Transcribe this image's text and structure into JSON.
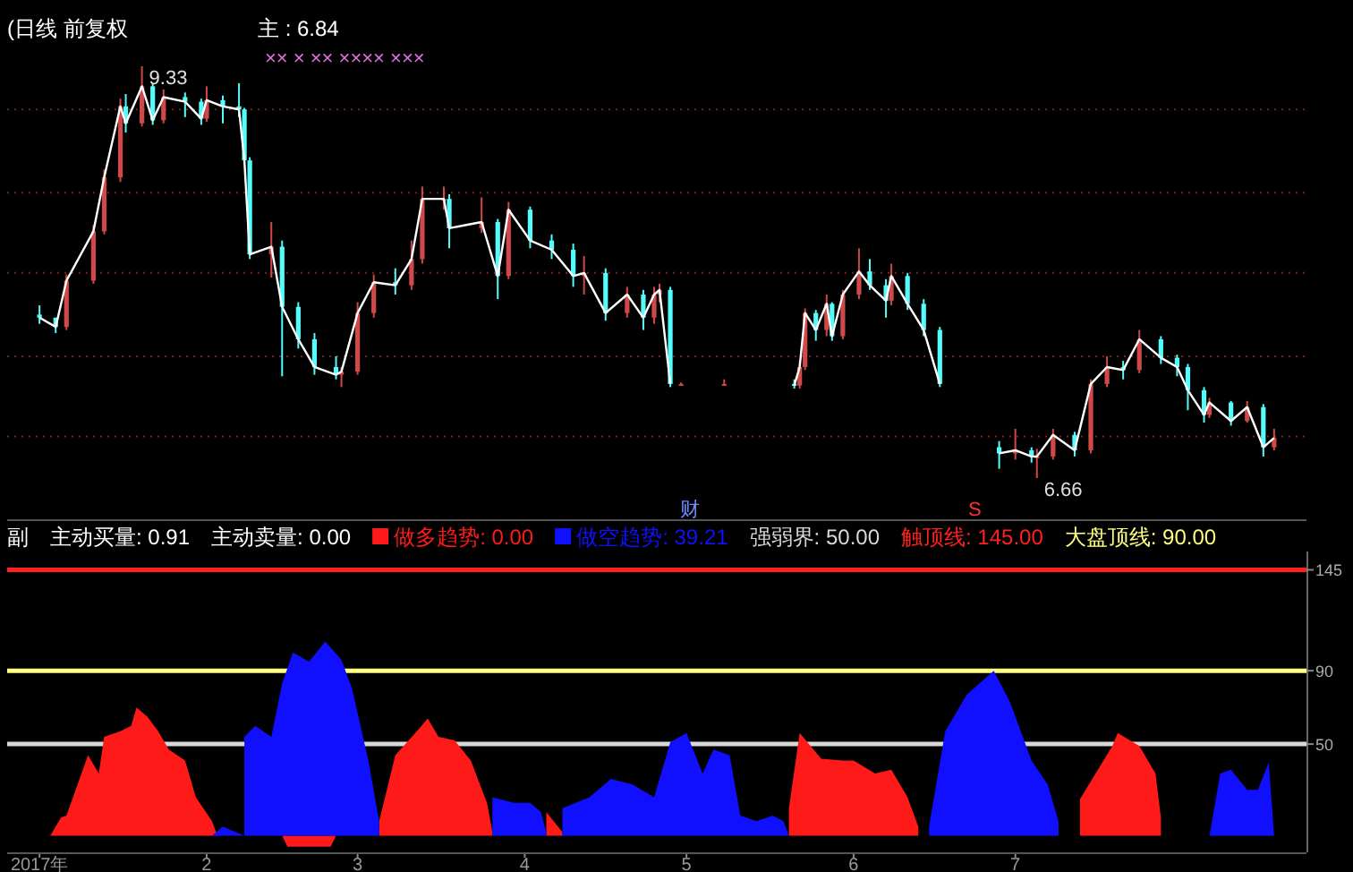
{
  "chart_data": [
    {
      "type": "candlestick",
      "title": "(日线 前复权",
      "x": [
        "2017-01-01",
        "2017-01-04",
        "2017-01-06",
        "2017-01-11",
        "2017-01-13",
        "2017-01-16",
        "2017-01-17",
        "2017-01-20",
        "2017-01-22",
        "2017-01-24",
        "2017-01-28",
        "2017-01-31",
        "2017-02-01",
        "2017-02-04",
        "2017-02-07",
        "2017-02-08",
        "2017-02-09",
        "2017-02-13",
        "2017-02-15",
        "2017-02-18",
        "2017-02-21",
        "2017-02-25",
        "2017-02-26",
        "2017-03-01",
        "2017-03-04",
        "2017-03-08",
        "2017-03-11",
        "2017-03-13",
        "2017-03-17",
        "2017-03-18",
        "2017-03-24",
        "2017-03-27",
        "2017-03-29",
        "2017-04-02",
        "2017-04-06",
        "2017-04-10",
        "2017-04-12",
        "2017-04-16",
        "2017-04-20",
        "2017-04-23",
        "2017-04-25",
        "2017-04-26",
        "2017-04-28",
        "2017-04-30",
        "2017-05-08",
        "2017-05-21",
        "2017-05-22",
        "2017-05-23",
        "2017-05-25",
        "2017-05-27",
        "2017-05-28",
        "2017-05-30",
        "2017-06-02",
        "2017-06-04",
        "2017-06-07",
        "2017-06-08",
        "2017-06-11",
        "2017-06-14",
        "2017-06-17",
        "2017-06-28",
        "2017-07-01",
        "2017-07-04",
        "2017-07-05",
        "2017-07-08",
        "2017-07-12",
        "2017-07-15",
        "2017-07-18",
        "2017-07-21",
        "2017-07-24",
        "2017-07-28",
        "2017-07-31",
        "2017-08-02",
        "2017-08-05",
        "2017-08-06",
        "2017-08-10",
        "2017-08-13",
        "2017-08-16",
        "2017-08-18"
      ],
      "ohlc": [
        [
          7.72,
          7.78,
          7.66,
          7.7
        ],
        [
          7.7,
          7.7,
          7.6,
          7.64
        ],
        [
          7.64,
          7.98,
          7.62,
          7.94
        ],
        [
          7.94,
          8.3,
          7.92,
          8.26
        ],
        [
          8.26,
          8.66,
          8.24,
          8.61
        ],
        [
          8.61,
          9.12,
          8.58,
          9.07
        ],
        [
          9.07,
          9.15,
          8.9,
          8.96
        ],
        [
          8.96,
          9.33,
          8.94,
          9.2
        ],
        [
          9.2,
          9.22,
          8.95,
          8.98
        ],
        [
          8.98,
          9.18,
          8.96,
          9.13
        ],
        [
          9.13,
          9.16,
          9.0,
          9.1
        ],
        [
          9.1,
          9.12,
          8.95,
          8.99
        ],
        [
          8.99,
          9.2,
          8.97,
          9.11
        ],
        [
          9.11,
          9.14,
          8.96,
          9.07
        ],
        [
          9.07,
          9.22,
          9.0,
          9.05
        ],
        [
          9.05,
          9.06,
          8.7,
          8.72
        ],
        [
          8.72,
          8.74,
          8.08,
          8.11
        ],
        [
          8.11,
          8.32,
          7.96,
          8.16
        ],
        [
          8.16,
          8.2,
          7.32,
          7.77
        ],
        [
          7.77,
          7.8,
          7.5,
          7.56
        ],
        [
          7.56,
          7.6,
          7.33,
          7.38
        ],
        [
          7.38,
          7.45,
          7.3,
          7.33
        ],
        [
          7.33,
          7.38,
          7.25,
          7.35
        ],
        [
          7.35,
          7.8,
          7.33,
          7.73
        ],
        [
          7.73,
          7.98,
          7.7,
          7.93
        ],
        [
          7.93,
          8.02,
          7.85,
          7.91
        ],
        [
          7.91,
          8.2,
          7.88,
          8.08
        ],
        [
          8.08,
          8.55,
          8.05,
          8.47
        ],
        [
          8.47,
          8.55,
          8.4,
          8.47
        ],
        [
          8.47,
          8.5,
          8.15,
          8.28
        ],
        [
          8.28,
          8.48,
          8.25,
          8.32
        ],
        [
          8.32,
          8.34,
          7.82,
          7.97
        ],
        [
          7.97,
          8.45,
          7.95,
          8.4
        ],
        [
          8.4,
          8.42,
          8.15,
          8.2
        ],
        [
          8.2,
          8.24,
          8.08,
          8.14
        ],
        [
          8.14,
          8.18,
          7.9,
          7.97
        ],
        [
          7.97,
          8.1,
          7.85,
          7.99
        ],
        [
          7.99,
          8.02,
          7.68,
          7.73
        ],
        [
          7.73,
          7.9,
          7.7,
          7.85
        ],
        [
          7.85,
          7.88,
          7.62,
          7.7
        ],
        [
          7.7,
          7.9,
          7.66,
          7.85
        ],
        [
          7.85,
          7.92,
          7.8,
          7.88
        ],
        [
          7.88,
          7.9,
          7.25,
          7.27
        ],
        [
          7.27,
          7.28,
          7.26,
          7.27
        ],
        [
          7.27,
          7.3,
          7.26,
          7.27
        ],
        [
          7.27,
          7.3,
          7.24,
          7.26
        ],
        [
          7.26,
          7.42,
          7.24,
          7.38
        ],
        [
          7.38,
          7.76,
          7.36,
          7.73
        ],
        [
          7.73,
          7.75,
          7.55,
          7.62
        ],
        [
          7.62,
          7.85,
          7.58,
          7.79
        ],
        [
          7.79,
          7.8,
          7.55,
          7.58
        ],
        [
          7.58,
          7.88,
          7.56,
          7.85
        ],
        [
          7.85,
          8.15,
          7.82,
          8.0
        ],
        [
          8.0,
          8.08,
          7.88,
          7.91
        ],
        [
          7.91,
          7.95,
          7.7,
          7.81
        ],
        [
          7.81,
          8.05,
          7.78,
          7.97
        ],
        [
          7.97,
          7.99,
          7.75,
          7.79
        ],
        [
          7.79,
          7.82,
          7.58,
          7.62
        ],
        [
          7.62,
          7.64,
          7.25,
          7.27
        ],
        [
          6.86,
          6.9,
          6.72,
          6.82
        ],
        [
          6.82,
          6.98,
          6.78,
          6.84
        ],
        [
          6.84,
          6.86,
          6.76,
          6.8
        ],
        [
          6.8,
          6.85,
          6.66,
          6.8
        ],
        [
          6.8,
          6.98,
          6.78,
          6.94
        ],
        [
          6.94,
          6.96,
          6.8,
          6.84
        ],
        [
          6.84,
          7.3,
          6.82,
          7.27
        ],
        [
          7.27,
          7.45,
          7.25,
          7.38
        ],
        [
          7.38,
          7.42,
          7.3,
          7.36
        ],
        [
          7.36,
          7.62,
          7.34,
          7.56
        ],
        [
          7.56,
          7.58,
          7.4,
          7.44
        ],
        [
          7.44,
          7.46,
          7.32,
          7.38
        ],
        [
          7.38,
          7.4,
          7.1,
          7.23
        ],
        [
          7.23,
          7.25,
          7.02,
          7.07
        ],
        [
          7.07,
          7.18,
          7.05,
          7.15
        ],
        [
          7.15,
          7.16,
          7.0,
          7.03
        ],
        [
          7.03,
          7.16,
          7.02,
          7.12
        ],
        [
          7.12,
          7.14,
          6.8,
          6.86
        ],
        [
          6.86,
          6.98,
          6.84,
          6.92
        ]
      ],
      "colors": [
        "#54fcfc",
        "#54fcfc",
        "#d04848",
        "#d04848",
        "#d04848",
        "#d04848",
        "#54fcfc",
        "#d04848",
        "#54fcfc",
        "#d04848",
        "#54fcfc",
        "#54fcfc",
        "#d04848",
        "#54fcfc",
        "#54fcfc",
        "#54fcfc",
        "#54fcfc",
        "#d04848",
        "#54fcfc",
        "#54fcfc",
        "#54fcfc",
        "#54fcfc",
        "#d04848",
        "#d04848",
        "#d04848",
        "#54fcfc",
        "#d04848",
        "#d04848",
        "#d04848",
        "#54fcfc",
        "#d04848",
        "#54fcfc",
        "#d04848",
        "#54fcfc",
        "#54fcfc",
        "#54fcfc",
        "#d04848",
        "#54fcfc",
        "#d04848",
        "#54fcfc",
        "#d04848",
        "#d04848",
        "#54fcfc",
        "#d04848",
        "#d04848",
        "#54fcfc",
        "#d04848",
        "#d04848",
        "#54fcfc",
        "#d04848",
        "#54fcfc",
        "#d04848",
        "#d04848",
        "#54fcfc",
        "#54fcfc",
        "#d04848",
        "#54fcfc",
        "#54fcfc",
        "#54fcfc",
        "#54fcfc",
        "#d04848",
        "#54fcfc",
        "#d04848",
        "#d04848",
        "#54fcfc",
        "#d04848",
        "#d04848",
        "#54fcfc",
        "#d04848",
        "#54fcfc",
        "#54fcfc",
        "#54fcfc",
        "#54fcfc",
        "#d04848",
        "#54fcfc",
        "#d04848",
        "#54fcfc",
        "#d04848"
      ],
      "series": [
        {
          "type": "line",
          "color": "#ffffff",
          "x": [
            "2017-01-01",
            "2017-01-04",
            "2017-01-06",
            "2017-01-11",
            "2017-01-13",
            "2017-01-16",
            "2017-01-17",
            "2017-01-20",
            "2017-01-22",
            "2017-01-24",
            "2017-01-28",
            "2017-01-31",
            "2017-02-01",
            "2017-02-04",
            "2017-02-07",
            "2017-02-08",
            "2017-02-09",
            "2017-02-13",
            "2017-02-15",
            "2017-02-18",
            "2017-02-21",
            "2017-02-25",
            "2017-02-26",
            "2017-03-01",
            "2017-03-04",
            "2017-03-08",
            "2017-03-11",
            "2017-03-13",
            "2017-03-17",
            "2017-03-18",
            "2017-03-24",
            "2017-03-27",
            "2017-03-29",
            "2017-04-02",
            "2017-04-06",
            "2017-04-10",
            "2017-04-12",
            "2017-04-16",
            "2017-04-20",
            "2017-04-23",
            "2017-04-25",
            "2017-04-26",
            "2017-04-28",
            "2017-04-30",
            "2017-05-08",
            "2017-05-21",
            "2017-05-22",
            "2017-05-23",
            "2017-05-25",
            "2017-05-27",
            "2017-05-28",
            "2017-05-30",
            "2017-06-02",
            "2017-06-04",
            "2017-06-07",
            "2017-06-08",
            "2017-06-11",
            "2017-06-14",
            "2017-06-17",
            "2017-06-22",
            "2017-06-28",
            "2017-07-01",
            "2017-07-04",
            "2017-07-05",
            "2017-07-08",
            "2017-07-12",
            "2017-07-15",
            "2017-07-18",
            "2017-07-21",
            "2017-07-24",
            "2017-07-28",
            "2017-07-31",
            "2017-08-02",
            "2017-08-05",
            "2017-08-06",
            "2017-08-10",
            "2017-08-13",
            "2017-08-16",
            "2017-08-18"
          ],
          "values": [
            7.7,
            7.64,
            7.94,
            8.26,
            8.61,
            9.07,
            8.96,
            9.2,
            8.98,
            9.13,
            9.1,
            8.99,
            9.11,
            9.07,
            9.05,
            8.72,
            8.11,
            8.16,
            7.77,
            7.56,
            7.38,
            7.33,
            7.35,
            7.73,
            7.93,
            7.91,
            8.08,
            8.47,
            8.47,
            8.28,
            8.32,
            7.97,
            8.4,
            8.2,
            8.14,
            7.97,
            7.99,
            7.73,
            7.85,
            7.7,
            7.85,
            7.88,
            7.27,
            null,
            null,
            7.26,
            7.38,
            7.73,
            7.62,
            7.79,
            7.58,
            7.85,
            8.0,
            7.91,
            7.81,
            7.97,
            7.79,
            7.62,
            7.27,
            null,
            6.82,
            6.84,
            6.8,
            6.8,
            6.94,
            6.84,
            7.27,
            7.38,
            7.36,
            7.56,
            7.44,
            7.38,
            7.23,
            7.07,
            7.15,
            7.03,
            7.12,
            6.86,
            6.92
          ]
        }
      ],
      "xlim": [
        "2016-12-26",
        "2017-08-24"
      ],
      "yticks": [
        {
          "value": 9.05,
          "label": null
        },
        {
          "value": 8.51,
          "label": null
        },
        {
          "value": 7.99,
          "label": null
        },
        {
          "value": 7.45,
          "label": null
        },
        {
          "value": 6.93,
          "label": null
        }
      ],
      "grid": "y",
      "annotations": [
        "主 : 6.84",
        "××   ×   ××   ×××× ×××",
        "财",
        "S",
        {
          "text": "9.33",
          "x": "2017-01-20",
          "y": 9.33
        },
        {
          "text": "6.66",
          "x": "2017-07-05",
          "y": 6.66
        }
      ]
    },
    {
      "type": "area",
      "xlim": [
        "2016-12-26",
        "2017-08-24"
      ],
      "ylim": [
        -9,
        155
      ],
      "xticks": [
        {
          "value": "2017-01-01",
          "label": "2017年"
        },
        {
          "value": "2017-02-01",
          "label": "2"
        },
        {
          "value": "2017-03-01",
          "label": "3"
        },
        {
          "value": "2017-04-01",
          "label": "4"
        },
        {
          "value": "2017-05-01",
          "label": "5"
        },
        {
          "value": "2017-06-01",
          "label": "6"
        },
        {
          "value": "2017-07-01",
          "label": "7"
        }
      ],
      "yticks": [
        50,
        90,
        145
      ],
      "legend": "top",
      "annotations": [
        "副",
        "主动买量: 0.91",
        "主动卖量: 0.00"
      ],
      "series": [
        {
          "name": "做多趋势: 0.00",
          "color": "#ff1a1a",
          "x": [
            "2017-01-03",
            "2017-01-05",
            "2017-01-06",
            "2017-01-10",
            "2017-01-12",
            "2017-01-13",
            "2017-01-16",
            "2017-01-18",
            "2017-01-19",
            "2017-01-21",
            "2017-01-23",
            "2017-01-25",
            "2017-01-28",
            "2017-01-30",
            "2017-02-02",
            "2017-02-03",
            "2017-02-15",
            "2017-02-16",
            "2017-02-24",
            "2017-02-25",
            "2017-03-05",
            "2017-03-05",
            "2017-03-08",
            "2017-03-12",
            "2017-03-14",
            "2017-03-16",
            "2017-03-19",
            "2017-03-22",
            "2017-03-25",
            "2017-03-26",
            "2017-03-26",
            "2017-04-05",
            "2017-04-05",
            "2017-04-08",
            "2017-04-08",
            "2017-05-20",
            "2017-05-20",
            "2017-05-22",
            "2017-05-26",
            "2017-05-30",
            "2017-06-01",
            "2017-06-05",
            "2017-06-08",
            "2017-06-11",
            "2017-06-13",
            "2017-06-13",
            "2017-07-13",
            "2017-07-13",
            "2017-07-19",
            "2017-07-20",
            "2017-07-24",
            "2017-07-27",
            "2017-07-28",
            "2017-07-28"
          ],
          "values": [
            0,
            10,
            11,
            44,
            34,
            54,
            57,
            60,
            70,
            65,
            57,
            47,
            41,
            21,
            8,
            0,
            0,
            -6,
            -6,
            0,
            0,
            8,
            44,
            57,
            64,
            54,
            52,
            41,
            18,
            2,
            0,
            0,
            13,
            2,
            0,
            0,
            15,
            56,
            42,
            41,
            41,
            34,
            36,
            21,
            5,
            0,
            0,
            20,
            49,
            56,
            49,
            34,
            10,
            0
          ]
        },
        {
          "name": "做空趋势: 39.21",
          "color": "#1010ff",
          "x": [
            "2017-02-02",
            "2017-02-04",
            "2017-02-08",
            "2017-02-08",
            "2017-02-10",
            "2017-02-13",
            "2017-02-15",
            "2017-02-17",
            "2017-02-20",
            "2017-02-23",
            "2017-02-26",
            "2017-02-28",
            "2017-03-03",
            "2017-03-05",
            "2017-03-05",
            "2017-03-26",
            "2017-03-26",
            "2017-03-30",
            "2017-04-02",
            "2017-04-04",
            "2017-04-05",
            "2017-04-05",
            "2017-04-08",
            "2017-04-08",
            "2017-04-13",
            "2017-04-17",
            "2017-04-21",
            "2017-04-25",
            "2017-04-28",
            "2017-05-01",
            "2017-05-04",
            "2017-05-06",
            "2017-05-09",
            "2017-05-11",
            "2017-05-14",
            "2017-05-17",
            "2017-05-19",
            "2017-05-20",
            "2017-06-15",
            "2017-06-15",
            "2017-06-18",
            "2017-06-22",
            "2017-06-27",
            "2017-06-30",
            "2017-07-04",
            "2017-07-07",
            "2017-07-09",
            "2017-07-09",
            "2017-08-06",
            "2017-08-08",
            "2017-08-10",
            "2017-08-13",
            "2017-08-15",
            "2017-08-17",
            "2017-08-18"
          ],
          "values": [
            0,
            5,
            0,
            54,
            60,
            54,
            83,
            100,
            95,
            106,
            96,
            80,
            41,
            8,
            0,
            0,
            21,
            18,
            18,
            13,
            2,
            0,
            0,
            15,
            21,
            31,
            28,
            21,
            51,
            56,
            34,
            47,
            44,
            11,
            8,
            11,
            8,
            0,
            0,
            5,
            57,
            77,
            90,
            73,
            41,
            28,
            8,
            0,
            0,
            34,
            36,
            25,
            25,
            40,
            0
          ]
        }
      ],
      "ref_lines": [
        {
          "axis": "y",
          "value": 50,
          "label": "强弱界: 50.00",
          "color": "#d8d8d8"
        },
        {
          "axis": "y",
          "value": 145,
          "label": "触顶线: 145.00",
          "color": "#ff2020"
        },
        {
          "axis": "y",
          "value": 90,
          "label": "大盘顶线: 90.00",
          "color": "#ffff80"
        }
      ]
    }
  ]
}
